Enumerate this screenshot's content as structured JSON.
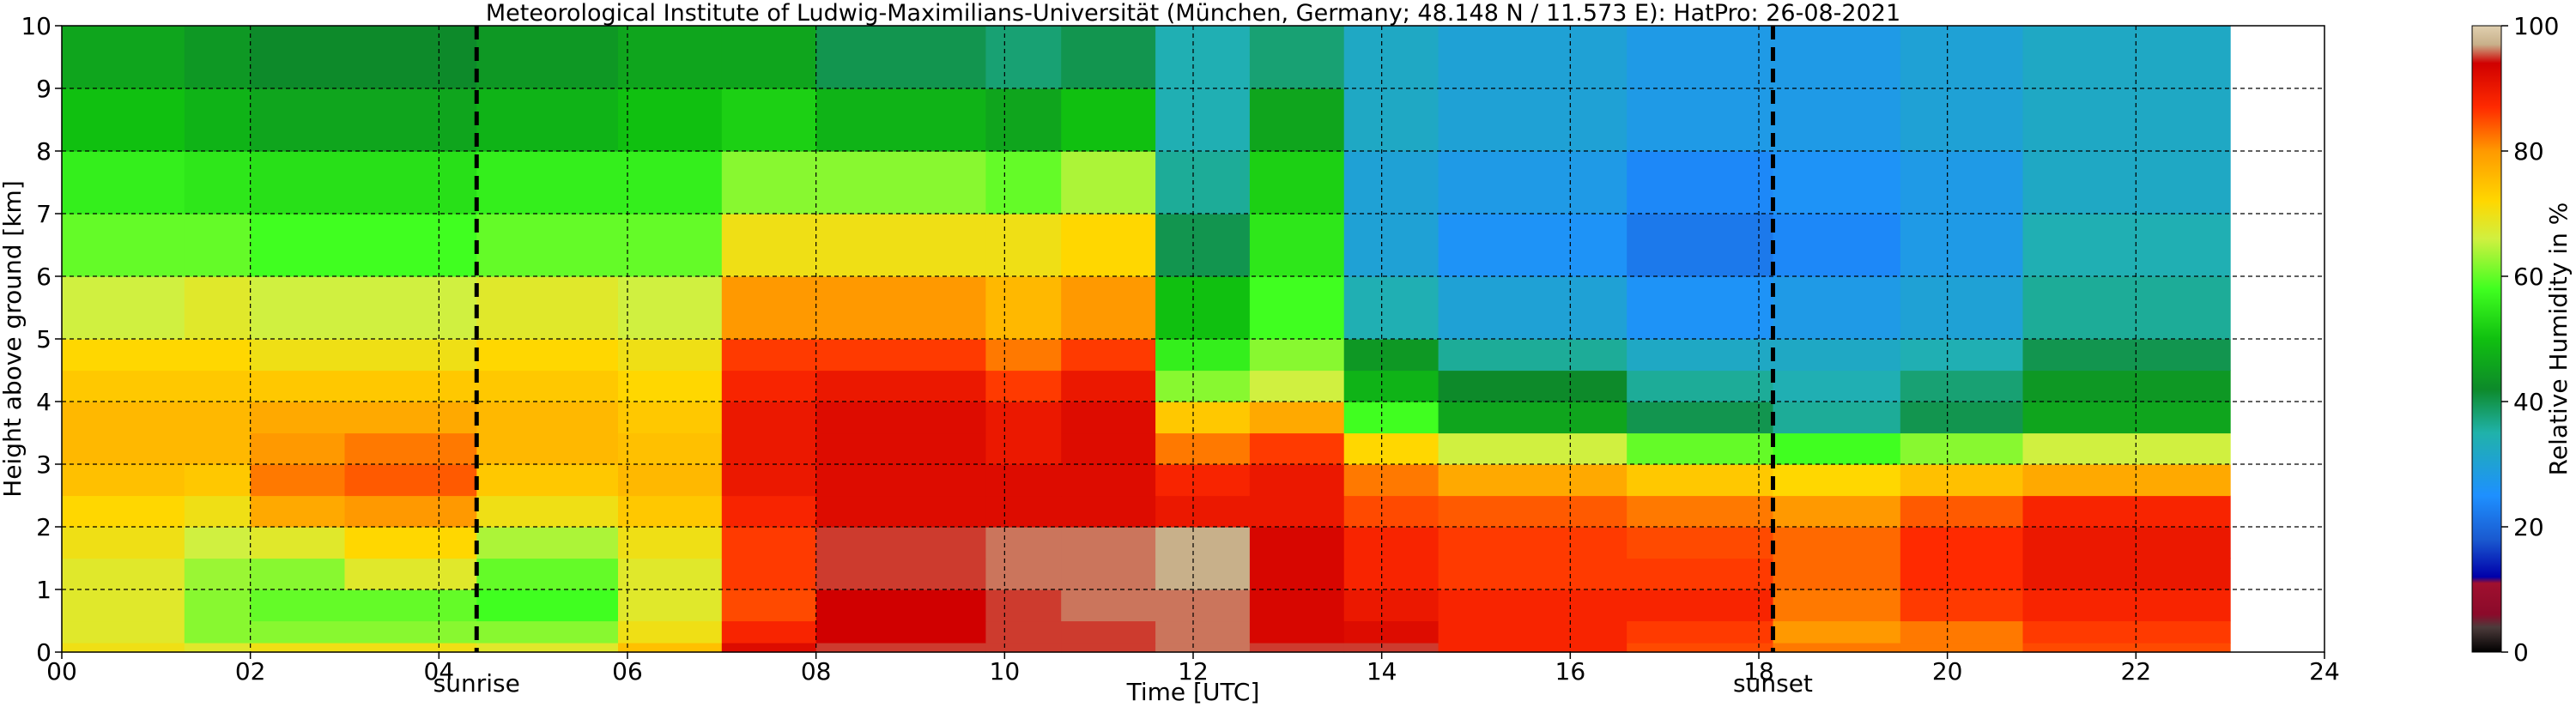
{
  "chart_data": {
    "type": "heatmap",
    "title": "Meteorological Institute of Ludwig-Maximilians-Universität (München, Germany; 48.148 N / 11.573 E):    HatPro: 26-08-2021",
    "xlabel": "Time [UTC]",
    "ylabel": "Height above ground [km]",
    "xlim": [
      0,
      24
    ],
    "ylim": [
      0,
      10
    ],
    "x_ticks": [
      0,
      2,
      4,
      6,
      8,
      10,
      12,
      14,
      16,
      18,
      20,
      22,
      24
    ],
    "x_tick_labels": [
      "00",
      "02",
      "04",
      "06",
      "08",
      "10",
      "12",
      "14",
      "16",
      "18",
      "20",
      "22",
      "24"
    ],
    "y_ticks": [
      0,
      1,
      2,
      3,
      4,
      5,
      6,
      7,
      8,
      9,
      10
    ],
    "y_tick_labels": [
      "0",
      "1",
      "2",
      "3",
      "4",
      "5",
      "6",
      "7",
      "8",
      "9",
      "10"
    ],
    "grid": true,
    "data_end_time": 23.0,
    "events": [
      {
        "label": "sunrise",
        "time": 4.4
      },
      {
        "label": "sunset",
        "time": 18.15
      }
    ],
    "colorbar": {
      "label": "Relative Humidity in %",
      "range": [
        0,
        100
      ],
      "ticks": [
        0,
        20,
        40,
        60,
        80,
        100
      ],
      "tick_labels": [
        "0",
        "20",
        "40",
        "60",
        "80",
        "100"
      ],
      "colors": [
        {
          "value": 0,
          "color": "#000000"
        },
        {
          "value": 4,
          "color": "#4d3b3b"
        },
        {
          "value": 6,
          "color": "#8b0a2a"
        },
        {
          "value": 11,
          "color": "#a0102f"
        },
        {
          "value": 12,
          "color": "#0000aa"
        },
        {
          "value": 18,
          "color": "#1a5ad0"
        },
        {
          "value": 25,
          "color": "#1e90ff"
        },
        {
          "value": 35,
          "color": "#20b2aa"
        },
        {
          "value": 42,
          "color": "#0d8a2a"
        },
        {
          "value": 50,
          "color": "#10c010"
        },
        {
          "value": 58,
          "color": "#40ff20"
        },
        {
          "value": 66,
          "color": "#d0f040"
        },
        {
          "value": 72,
          "color": "#ffd700"
        },
        {
          "value": 80,
          "color": "#ff9900"
        },
        {
          "value": 87,
          "color": "#ff2a00"
        },
        {
          "value": 94,
          "color": "#d00000"
        },
        {
          "value": 97,
          "color": "#c8b08a"
        },
        {
          "value": 100,
          "color": "#e0d0b0"
        }
      ]
    },
    "time_bins": [
      0,
      1.3,
      2.0,
      3.0,
      4.4,
      5.9,
      7.0,
      8.0,
      9.8,
      10.6,
      11.6,
      12.6,
      13.6,
      14.6,
      16.6,
      18.15,
      19.5,
      20.8,
      23.0
    ],
    "height_levels_km": [
      0,
      0.15,
      0.5,
      1,
      1.5,
      2,
      2.5,
      3,
      3.5,
      4,
      4.5,
      5,
      6,
      7,
      8,
      9,
      10
    ],
    "rh_values": [
      [
        70,
        68,
        70,
        70,
        68,
        75,
        92,
        95,
        95,
        95,
        96,
        95,
        95,
        88,
        85,
        82,
        82,
        85
      ],
      [
        68,
        62,
        62,
        62,
        62,
        70,
        88,
        94,
        95,
        95,
        96,
        93,
        92,
        88,
        86,
        80,
        82,
        86
      ],
      [
        68,
        62,
        60,
        60,
        58,
        68,
        85,
        94,
        95,
        96,
        96,
        93,
        90,
        88,
        88,
        82,
        86,
        88
      ],
      [
        68,
        63,
        62,
        68,
        60,
        68,
        86,
        95,
        96,
        96,
        97,
        93,
        88,
        86,
        86,
        83,
        87,
        90
      ],
      [
        70,
        66,
        68,
        72,
        64,
        70,
        86,
        95,
        96,
        96,
        97,
        93,
        88,
        86,
        85,
        83,
        87,
        90
      ],
      [
        72,
        70,
        78,
        80,
        70,
        74,
        88,
        92,
        92,
        92,
        90,
        90,
        85,
        84,
        82,
        80,
        84,
        88
      ],
      [
        75,
        74,
        82,
        84,
        74,
        76,
        90,
        92,
        92,
        92,
        88,
        90,
        82,
        78,
        74,
        72,
        75,
        78
      ],
      [
        76,
        76,
        80,
        82,
        76,
        75,
        90,
        92,
        90,
        92,
        82,
        86,
        72,
        66,
        60,
        58,
        62,
        66
      ],
      [
        76,
        76,
        78,
        78,
        76,
        74,
        90,
        92,
        90,
        92,
        74,
        78,
        58,
        46,
        40,
        36,
        40,
        46
      ],
      [
        74,
        74,
        74,
        74,
        74,
        72,
        88,
        90,
        86,
        90,
        62,
        66,
        48,
        42,
        36,
        34,
        38,
        44
      ],
      [
        72,
        72,
        70,
        70,
        72,
        70,
        86,
        86,
        82,
        86,
        56,
        62,
        44,
        36,
        32,
        32,
        34,
        40
      ],
      [
        66,
        68,
        66,
        66,
        68,
        66,
        80,
        80,
        76,
        80,
        50,
        58,
        34,
        30,
        26,
        28,
        30,
        36
      ],
      [
        60,
        60,
        58,
        58,
        60,
        60,
        70,
        70,
        70,
        72,
        40,
        55,
        30,
        26,
        22,
        24,
        28,
        34
      ],
      [
        56,
        55,
        54,
        54,
        56,
        56,
        62,
        62,
        60,
        64,
        36,
        52,
        30,
        28,
        24,
        26,
        28,
        32
      ],
      [
        50,
        48,
        46,
        46,
        48,
        50,
        52,
        48,
        46,
        50,
        34,
        46,
        32,
        30,
        28,
        28,
        30,
        32
      ],
      [
        46,
        44,
        42,
        42,
        44,
        46,
        46,
        40,
        38,
        40,
        34,
        38,
        32,
        30,
        28,
        28,
        30,
        32
      ]
    ]
  }
}
